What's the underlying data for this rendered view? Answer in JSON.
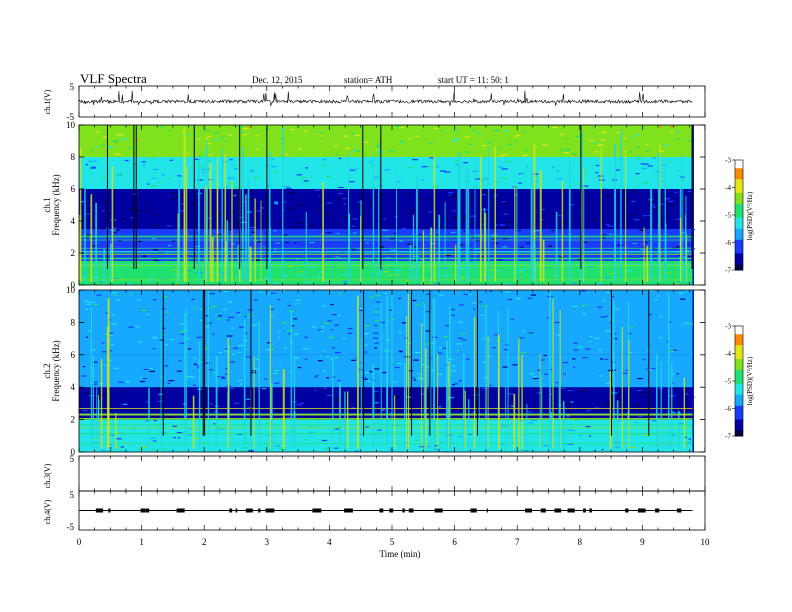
{
  "header": {
    "title": "VLF  Spectra",
    "date": "Dec. 12,  2015",
    "station": "station= ATH",
    "start": "start  UT  =    11: 50: 1"
  },
  "colors": {
    "spectrogram_scale": [
      "#000000",
      "#000040",
      "#0000a0",
      "#1a3cff",
      "#17a8ff",
      "#22e5e8",
      "#20e070",
      "#7fe21c",
      "#e5e617",
      "#ff8a00",
      "#ff1a00",
      "#ffffff"
    ],
    "trace": "#000000",
    "frame": "#000000"
  },
  "chart_data": [
    {
      "type": "line",
      "name": "ch1-waveform",
      "ylabel": "ch.1(V)",
      "ylim": [
        -5,
        5
      ],
      "yticks": [
        "5",
        "-5"
      ],
      "xlim": [
        0,
        10
      ],
      "baseline": 0,
      "description_values": {
        "mean": 0,
        "typical_amplitude": 1.0,
        "spike_amplitude": 2.5
      }
    },
    {
      "type": "heatmap",
      "name": "ch1-spectrogram",
      "ylabel_1": "ch.1",
      "ylabel_2": "Frequency  (kHz)",
      "ylim": [
        0,
        10
      ],
      "yticks": [
        "0",
        "2",
        "4",
        "6",
        "8",
        "10"
      ],
      "xlim": [
        0,
        9.8
      ],
      "zlim": [
        -7,
        -3
      ],
      "colorbar": {
        "label": "log(PSD)(V²/Hz)",
        "ticks": [
          "-3",
          "-4",
          "-5",
          "-6",
          "-7"
        ]
      },
      "bands": [
        {
          "f_min": 0,
          "f_max": 1.5,
          "logpsd": -5.0
        },
        {
          "f_min": 1.5,
          "f_max": 3.5,
          "logpsd": -6.3
        },
        {
          "f_min": 3.5,
          "f_max": 6.0,
          "logpsd": -6.6
        },
        {
          "f_min": 6.0,
          "f_max": 8.0,
          "logpsd": -5.4
        },
        {
          "f_min": 8.0,
          "f_max": 10.0,
          "logpsd": -4.4
        }
      ]
    },
    {
      "type": "heatmap",
      "name": "ch2-spectrogram",
      "ylabel_1": "ch.2",
      "ylabel_2": "Frequency  (kHz)",
      "ylim": [
        0,
        10
      ],
      "yticks": [
        "0",
        "2",
        "4",
        "6",
        "8",
        "10"
      ],
      "xlim": [
        0,
        9.8
      ],
      "zlim": [
        -7,
        -3
      ],
      "colorbar": {
        "label": "log(PSD)(V²/Hz)",
        "ticks": [
          "-3",
          "-4",
          "-5",
          "-6",
          "-7"
        ]
      },
      "bands": [
        {
          "f_min": 0,
          "f_max": 2.0,
          "logpsd": -5.3
        },
        {
          "f_min": 2.0,
          "f_max": 4.0,
          "logpsd": -6.5
        },
        {
          "f_min": 4.0,
          "f_max": 6.0,
          "logpsd": -5.8
        },
        {
          "f_min": 6.0,
          "f_max": 10.0,
          "logpsd": -5.6
        }
      ]
    },
    {
      "type": "line",
      "name": "ch3-waveform",
      "ylabel": "ch.3(V)",
      "ylim": [
        -5,
        5
      ],
      "yticks": [
        "5",
        "-5"
      ],
      "xlim": [
        0,
        10
      ],
      "values": []
    },
    {
      "type": "line",
      "name": "ch4-waveform",
      "ylabel": "ch.4(V)",
      "ylim": [
        -5,
        5
      ],
      "yticks": [
        "5",
        "-5"
      ],
      "xlim": [
        0,
        10
      ],
      "baseline": 0
    }
  ],
  "x_axis": {
    "label": "Time  (min)",
    "ticks": [
      "0",
      "1",
      "2",
      "3",
      "4",
      "5",
      "6",
      "7",
      "8",
      "9",
      "10"
    ],
    "range": [
      0,
      10
    ]
  }
}
